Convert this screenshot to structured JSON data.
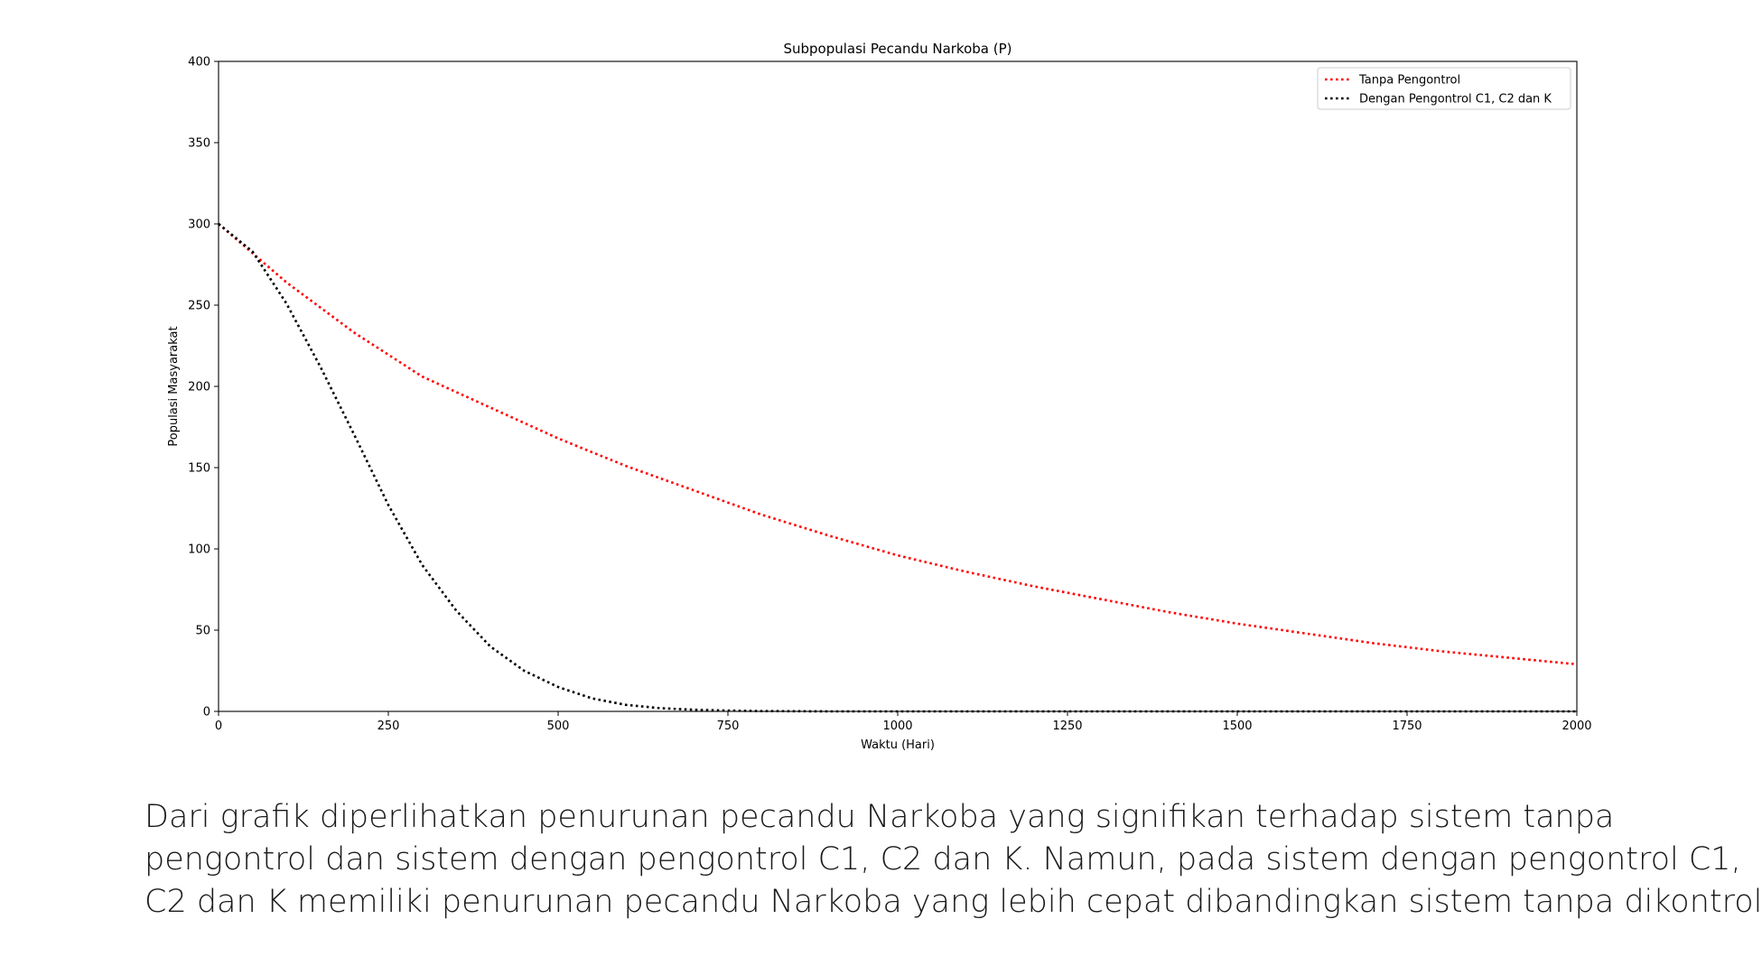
{
  "chart_data": {
    "type": "line",
    "title": "Subpopulasi Pecandu Narkoba (P)",
    "xlabel": "Waktu (Hari)",
    "ylabel": "Populasi Masyarakat",
    "xlim": [
      0,
      2000
    ],
    "ylim": [
      0,
      400
    ],
    "xticks": [
      0,
      250,
      500,
      750,
      1000,
      1250,
      1500,
      1750,
      2000
    ],
    "yticks": [
      0,
      50,
      100,
      150,
      200,
      250,
      300,
      350,
      400
    ],
    "grid": false,
    "legend_position": "top-right",
    "line_style": "dotted",
    "series": [
      {
        "name": "Tanpa Pengontrol",
        "color": "#ff0000",
        "x": [
          0,
          100,
          200,
          300,
          400,
          500,
          600,
          700,
          800,
          900,
          1000,
          1100,
          1200,
          1300,
          1400,
          1500,
          1600,
          1700,
          1800,
          1900,
          2000
        ],
        "y": [
          300,
          264,
          233,
          206,
          187,
          168,
          151,
          136,
          121,
          108,
          96,
          86,
          77,
          69,
          61,
          54,
          48,
          42,
          37,
          33,
          29
        ]
      },
      {
        "name": "Dengan Pengontrol C1, C2 dan K",
        "color": "#000000",
        "x": [
          0,
          50,
          100,
          150,
          200,
          250,
          300,
          350,
          400,
          450,
          500,
          550,
          600,
          650,
          700,
          750,
          800,
          900,
          1000,
          1250,
          1500,
          1750,
          2000
        ],
        "y": [
          300,
          283,
          251,
          212,
          170,
          127,
          90,
          62,
          40,
          25,
          15,
          8,
          4,
          2,
          1,
          0.5,
          0.2,
          0,
          0,
          0,
          0,
          0,
          0
        ]
      }
    ]
  },
  "caption": {
    "line1": "Dari grafik diperlihatkan penurunan pecandu Narkoba yang signifikan terhadap sistem tanpa",
    "line2": "pengontrol dan sistem dengan pengontrol C1, C2 dan K. Namun, pada sistem dengan pengontrol C1,",
    "line3": "C2 dan K memiliki penurunan pecandu Narkoba yang lebih cepat dibandingkan sistem tanpa dikontrol"
  }
}
